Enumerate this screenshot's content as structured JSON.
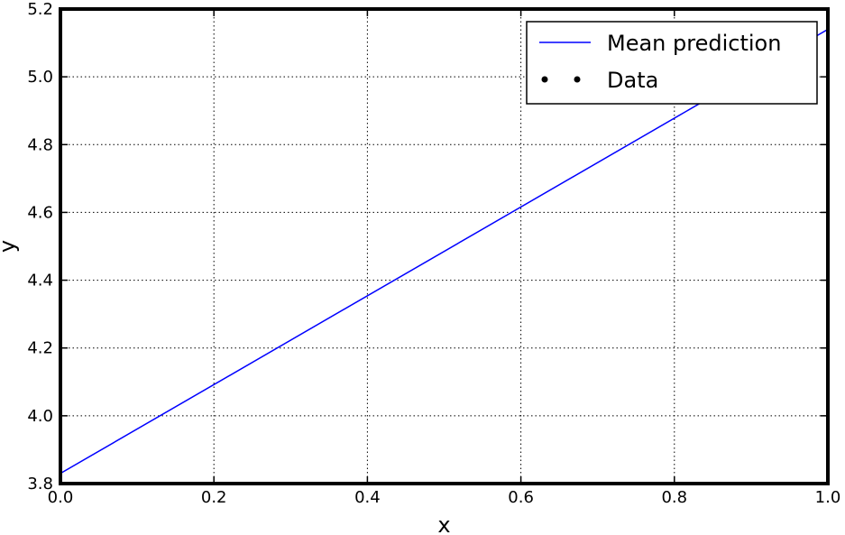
{
  "chart_data": {
    "type": "line",
    "xlabel": "x",
    "ylabel": "y",
    "xlim": [
      0.0,
      1.0
    ],
    "ylim": [
      3.8,
      5.2
    ],
    "grid": true,
    "grid_style": "dotted",
    "legend_position": "top-right",
    "x_ticks": [
      {
        "value": 0.0,
        "label": "0.0"
      },
      {
        "value": 0.2,
        "label": "0.2"
      },
      {
        "value": 0.4,
        "label": "0.4"
      },
      {
        "value": 0.6,
        "label": "0.6"
      },
      {
        "value": 0.8,
        "label": "0.8"
      },
      {
        "value": 1.0,
        "label": "1.0"
      }
    ],
    "y_ticks": [
      {
        "value": 3.8,
        "label": "3.8"
      },
      {
        "value": 4.0,
        "label": "4.0"
      },
      {
        "value": 4.2,
        "label": "4.2"
      },
      {
        "value": 4.4,
        "label": "4.4"
      },
      {
        "value": 4.6,
        "label": "4.6"
      },
      {
        "value": 4.8,
        "label": "4.8"
      },
      {
        "value": 5.0,
        "label": "5.0"
      },
      {
        "value": 5.2,
        "label": "5.2"
      }
    ],
    "series": [
      {
        "name": "Mean prediction",
        "kind": "line",
        "color": "#0000ff",
        "x": [
          0.0,
          1.0
        ],
        "y": [
          3.83,
          5.14
        ]
      },
      {
        "name": "Data",
        "kind": "scatter",
        "color": "#000000",
        "x": [],
        "y": []
      }
    ]
  }
}
